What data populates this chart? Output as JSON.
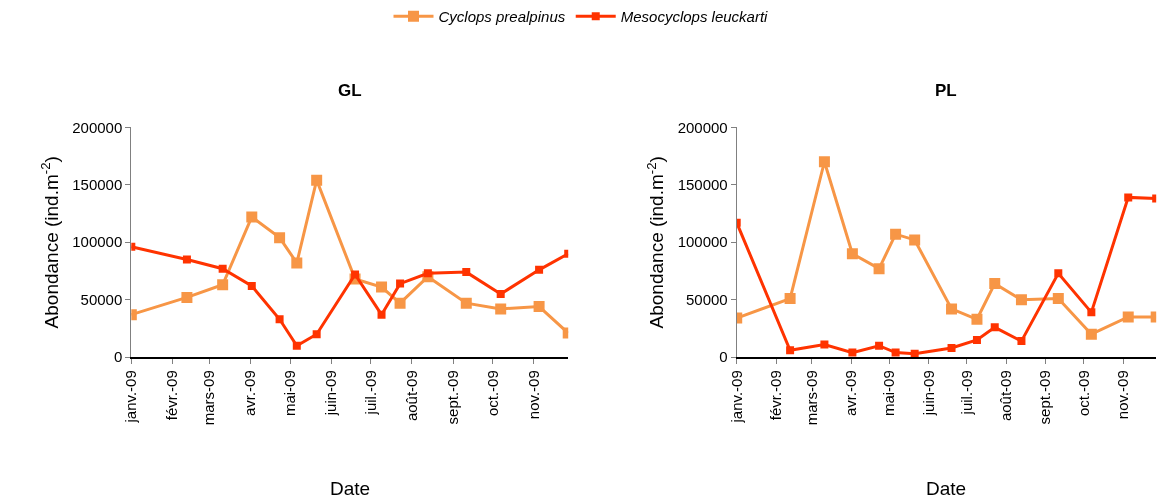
{
  "chart_data": [
    {
      "type": "line",
      "title": "GL",
      "xlabel": "Date",
      "ylabel": "Abondance (ind.m$^{-2}$)",
      "legend": "top",
      "marker": "square",
      "line_style": "solid",
      "x": [
        "2009-01-01",
        "2009-02-12",
        "2009-03-11",
        "2009-04-02",
        "2009-04-23",
        "2009-05-06",
        "2009-05-21",
        "2009-06-19",
        "2009-07-09",
        "2009-07-23",
        "2009-08-13",
        "2009-09-11",
        "2009-10-07",
        "2009-11-05",
        "2009-11-27"
      ],
      "xlim": [
        "2009-01-01",
        "2009-11-27"
      ],
      "xticks": [
        {
          "value": "2009-01-01",
          "label": "janv.-09"
        },
        {
          "value": "2009-02-01",
          "label": "févr.-09"
        },
        {
          "value": "2009-03-01",
          "label": "mars-09"
        },
        {
          "value": "2009-04-01",
          "label": "avr.-09"
        },
        {
          "value": "2009-05-01",
          "label": "mai-09"
        },
        {
          "value": "2009-06-01",
          "label": "juin-09"
        },
        {
          "value": "2009-07-01",
          "label": "juil.-09"
        },
        {
          "value": "2009-08-01",
          "label": "août-09"
        },
        {
          "value": "2009-09-01",
          "label": "sept.-09"
        },
        {
          "value": "2009-10-01",
          "label": "oct.-09"
        },
        {
          "value": "2009-11-01",
          "label": "nov.-09"
        }
      ],
      "ylim": [
        0,
        200000
      ],
      "yticks": [
        0,
        50000,
        100000,
        150000,
        200000
      ],
      "series": [
        {
          "name": "Cyclops prealpinus",
          "color": "#f79646",
          "values": [
            37000,
            52000,
            63000,
            122000,
            104000,
            82000,
            154000,
            68000,
            61000,
            47000,
            70000,
            47000,
            42000,
            44000,
            21000
          ]
        },
        {
          "name": "Mesocyclops leuckarti",
          "color": "#ff3300",
          "values": [
            96000,
            85000,
            77000,
            62000,
            33000,
            10000,
            20000,
            72000,
            37000,
            64000,
            73000,
            74000,
            55000,
            76000,
            90000
          ]
        }
      ]
    },
    {
      "type": "line",
      "title": "PL",
      "xlabel": "Date",
      "ylabel": "Abondance (ind.m$^{-2}$)",
      "legend": "top",
      "marker": "square",
      "line_style": "solid",
      "x": [
        "2009-01-01",
        "2009-02-12",
        "2009-03-11",
        "2009-04-02",
        "2009-04-23",
        "2009-05-06",
        "2009-05-21",
        "2009-06-19",
        "2009-07-09",
        "2009-07-23",
        "2009-08-13",
        "2009-09-11",
        "2009-10-07",
        "2009-11-05",
        "2009-11-27"
      ],
      "xlim": [
        "2009-01-01",
        "2009-11-27"
      ],
      "xticks": [
        {
          "value": "2009-01-01",
          "label": "janv.-09"
        },
        {
          "value": "2009-02-01",
          "label": "févr.-09"
        },
        {
          "value": "2009-03-01",
          "label": "mars-09"
        },
        {
          "value": "2009-04-01",
          "label": "avr.-09"
        },
        {
          "value": "2009-05-01",
          "label": "mai-09"
        },
        {
          "value": "2009-06-01",
          "label": "juin-09"
        },
        {
          "value": "2009-07-01",
          "label": "juil.-09"
        },
        {
          "value": "2009-08-01",
          "label": "août-09"
        },
        {
          "value": "2009-09-01",
          "label": "sept.-09"
        },
        {
          "value": "2009-10-01",
          "label": "oct.-09"
        },
        {
          "value": "2009-11-01",
          "label": "nov.-09"
        }
      ],
      "ylim": [
        0,
        200000
      ],
      "yticks": [
        0,
        50000,
        100000,
        150000,
        200000
      ],
      "series": [
        {
          "name": "Cyclops prealpinus",
          "color": "#f79646",
          "values": [
            34000,
            51000,
            170000,
            90000,
            77000,
            107000,
            102000,
            42000,
            33000,
            64000,
            50000,
            51000,
            20000,
            35000,
            35000
          ]
        },
        {
          "name": "Mesocyclops leuckarti",
          "color": "#ff3300",
          "values": [
            117000,
            6000,
            11000,
            4000,
            10000,
            4000,
            3000,
            8000,
            15000,
            26000,
            14000,
            73000,
            39000,
            139000,
            138000
          ]
        }
      ]
    }
  ]
}
